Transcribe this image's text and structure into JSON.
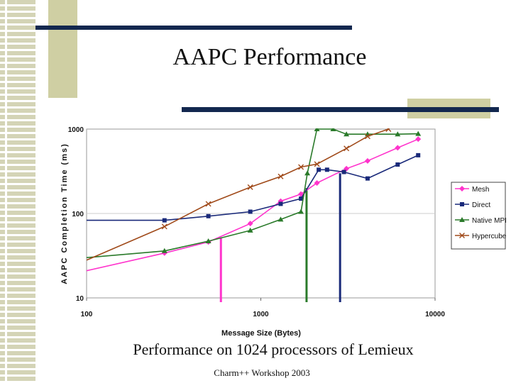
{
  "slide": {
    "title": "AAPC Performance",
    "caption": "Performance on 1024 processors of Lemieux",
    "footer": "Charm++ Workshop 2003"
  },
  "chart_data": {
    "type": "line",
    "xscale": "log",
    "yscale": "log",
    "xlabel": "Message Size (Bytes)",
    "ylabel": "AAPC Completion Time (ms)",
    "xlim": [
      100,
      10000
    ],
    "ylim": [
      10,
      1000
    ],
    "xticks": [
      "100",
      "1000",
      "10000"
    ],
    "yticks": [
      "1000",
      "100",
      "10"
    ],
    "legend_position": "right",
    "series": [
      {
        "name": "Mesh",
        "color": "#ff33cc",
        "marker": "diamond",
        "points": [
          [
            100,
            21
          ],
          [
            280,
            34
          ],
          [
            500,
            46
          ],
          [
            870,
            76
          ],
          [
            1300,
            140
          ],
          [
            1700,
            170
          ],
          [
            2100,
            230
          ],
          [
            3100,
            340
          ],
          [
            4100,
            420
          ],
          [
            6100,
            600
          ],
          [
            8000,
            760
          ]
        ]
      },
      {
        "name": "Direct",
        "color": "#1a2a7a",
        "marker": "square",
        "points": [
          [
            100,
            83
          ],
          [
            280,
            83
          ],
          [
            500,
            93
          ],
          [
            870,
            105
          ],
          [
            1300,
            130
          ],
          [
            1700,
            150
          ],
          [
            2150,
            330
          ],
          [
            2400,
            330
          ],
          [
            3000,
            310
          ],
          [
            4100,
            260
          ],
          [
            6100,
            380
          ],
          [
            8000,
            490
          ]
        ]
      },
      {
        "name": "Native MPI",
        "color": "#2a7a2a",
        "marker": "triangle",
        "points": [
          [
            100,
            30
          ],
          [
            280,
            36
          ],
          [
            500,
            47
          ],
          [
            870,
            63
          ],
          [
            1300,
            85
          ],
          [
            1700,
            105
          ],
          [
            1850,
            300
          ],
          [
            2100,
            1000
          ],
          [
            2600,
            1000
          ],
          [
            3100,
            870
          ],
          [
            4100,
            870
          ],
          [
            6100,
            870
          ],
          [
            8000,
            880
          ]
        ]
      },
      {
        "name": "Hypercube",
        "color": "#a04a1a",
        "marker": "x",
        "points": [
          [
            100,
            28
          ],
          [
            280,
            70
          ],
          [
            500,
            130
          ],
          [
            870,
            205
          ],
          [
            1300,
            275
          ],
          [
            1700,
            355
          ],
          [
            2100,
            385
          ],
          [
            3100,
            590
          ],
          [
            4100,
            820
          ],
          [
            5400,
            1000
          ]
        ]
      }
    ],
    "annotations": [
      {
        "type": "vertical-marker",
        "x": 590,
        "color": "#ff33cc"
      },
      {
        "type": "vertical-marker",
        "x": 1830,
        "color": "#2a7a2a"
      },
      {
        "type": "vertical-marker",
        "x": 2850,
        "color": "#1a2a7a"
      }
    ]
  }
}
